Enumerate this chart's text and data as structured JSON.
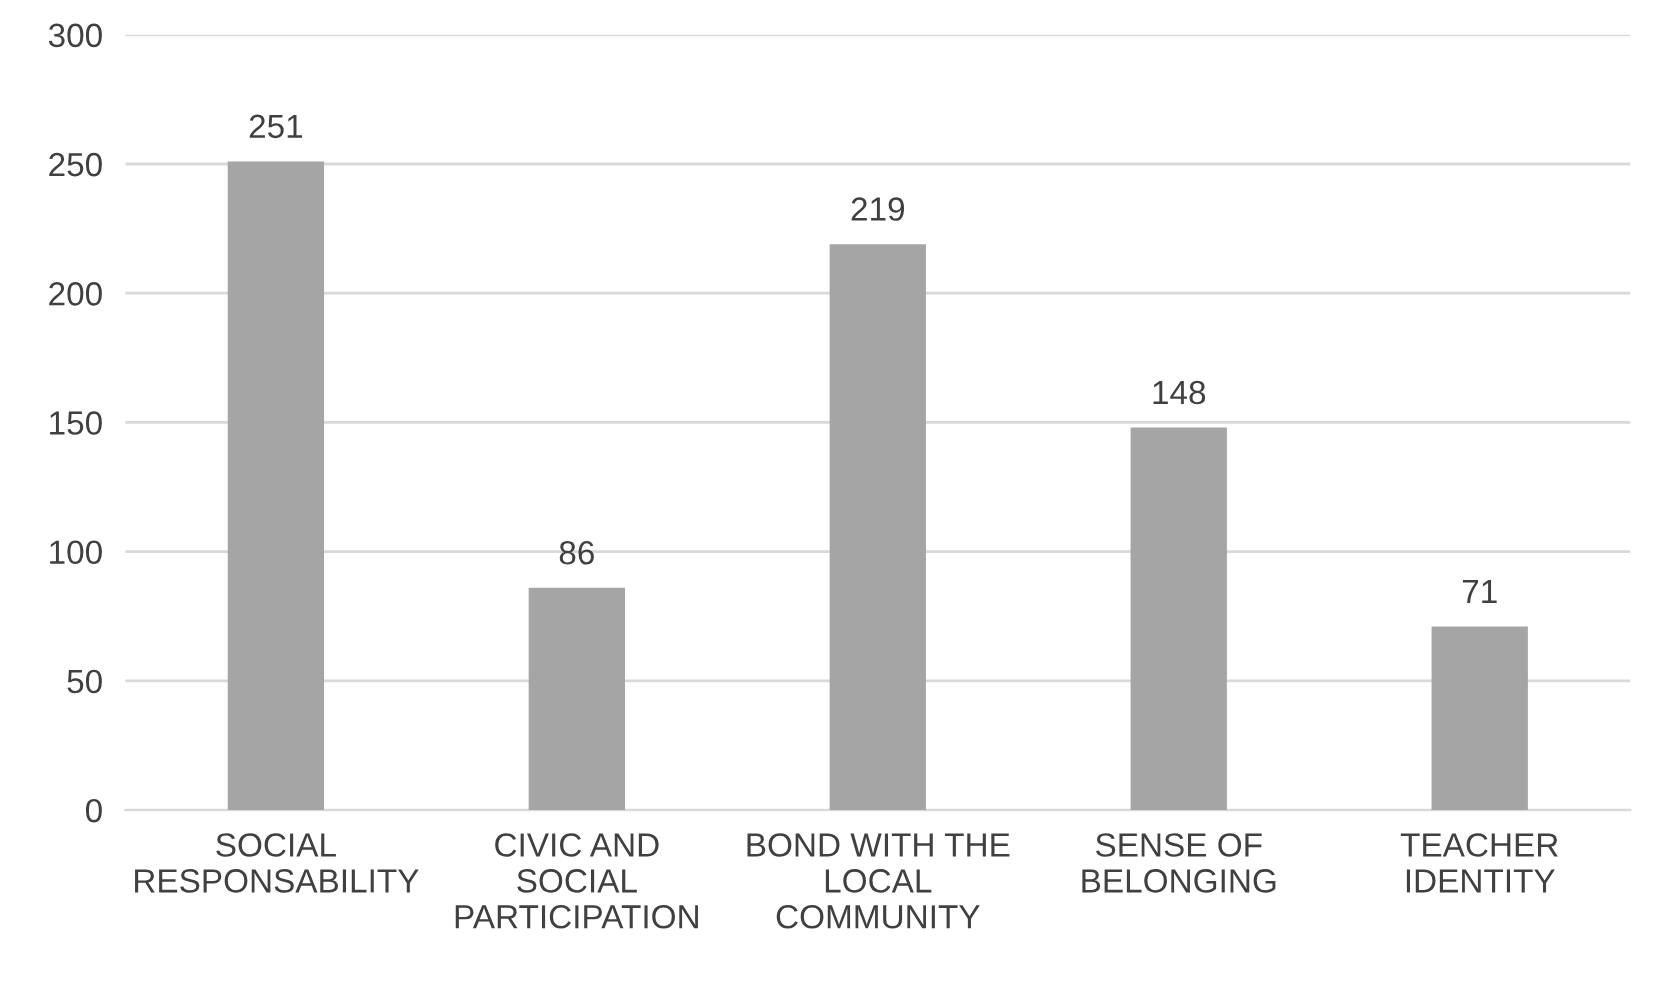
{
  "chart_data": {
    "type": "bar",
    "categories": [
      "SOCIAL\nRESPONSABILITY",
      "CIVIC AND\nSOCIAL\nPARTICIPATION",
      "BOND WITH THE\nLOCAL\nCOMMUNITY",
      "SENSE OF\nBELONGING",
      "TEACHER\nIDENTITY"
    ],
    "values": [
      251,
      86,
      219,
      148,
      71
    ],
    "color": "#a5a5a5",
    "ylim": [
      0,
      300
    ],
    "yticks": [
      0,
      50,
      100,
      150,
      200,
      250,
      300
    ],
    "grid": "y",
    "data_labels": true
  }
}
